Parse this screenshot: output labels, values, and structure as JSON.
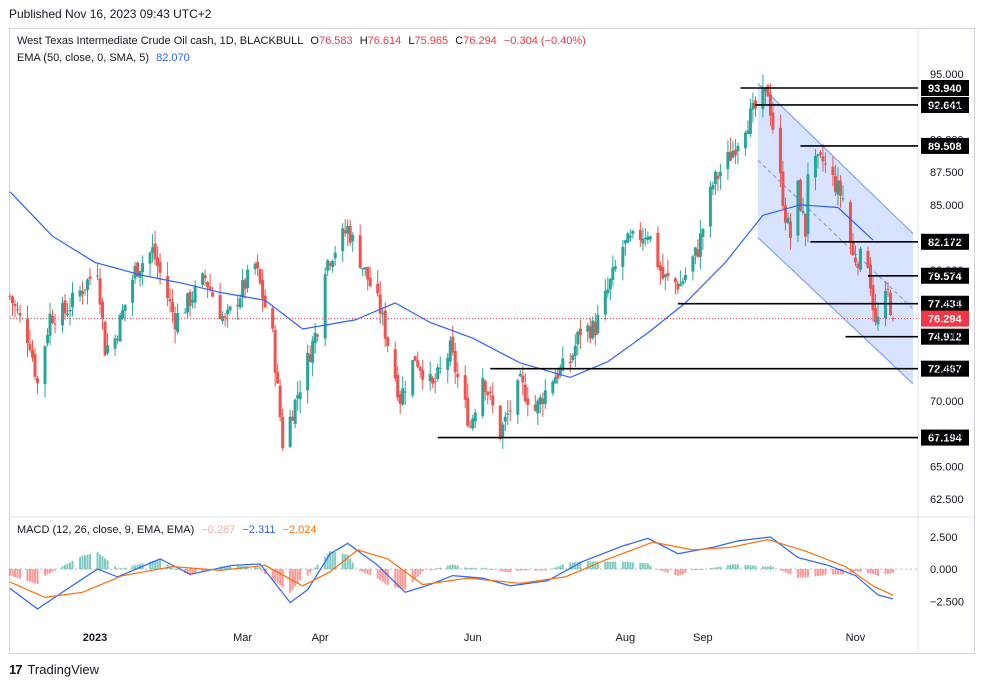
{
  "header": {
    "published": "Published  Nov 16, 2023 09:43 UTC+2"
  },
  "legend": {
    "title": "West Texas Intermediate Crude Oil cash, 1D, BLACKBULL",
    "o_label": "O",
    "o": "76.583",
    "h_label": "H",
    "h": "76.614",
    "l_label": "L",
    "l": "75.965",
    "c_label": "C",
    "c": "76.294",
    "change": "−0.304 (−0.40%)",
    "ema_label": "EMA (50, close, 0, SMA, 5)",
    "ema_value": "82.070"
  },
  "macd_legend": {
    "label": "MACD (12, 26, close, 9, EMA, EMA)",
    "hist": "−0.287",
    "macd": "−2.311",
    "signal": "−2.024"
  },
  "footer": {
    "brand": "TradingView",
    "logo": "17"
  },
  "colors": {
    "up": "#26a69a",
    "down": "#ef5350",
    "ema": "#2962ff",
    "macd": "#2962ff",
    "signal": "#ff6d00",
    "channel": "#2962ff",
    "price_tag": "#f23645"
  },
  "chart_data": [
    {
      "type": "candlestick",
      "title": "West Texas Intermediate Crude Oil cash, 1D, BLACKBULL",
      "x_ticks": [
        "2023",
        "Mar",
        "Apr",
        "Jun",
        "Aug",
        "Sep",
        "Nov"
      ],
      "y_ticks": [
        "95.000",
        "92.500",
        "90.000",
        "87.500",
        "85.000",
        "82.500",
        "80.000",
        "77.500",
        "75.000",
        "72.500",
        "70.000",
        "67.500",
        "65.000",
        "62.500"
      ],
      "ylim": [
        61.5,
        97
      ],
      "x_range": [
        "2022-11-28",
        "2023-11-26"
      ],
      "last_price": "76.294",
      "horizontal_levels": [
        {
          "label": "93.940",
          "value": 93.94,
          "from": "2023-09-16",
          "to": "2023-11-24"
        },
        {
          "label": "92.641",
          "value": 92.641,
          "from": "2023-09-22",
          "to": "2023-11-24"
        },
        {
          "label": "89.508",
          "value": 89.508,
          "from": "2023-10-10",
          "to": "2023-11-24"
        },
        {
          "label": "82.172",
          "value": 82.172,
          "from": "2023-10-14",
          "to": "2023-11-24"
        },
        {
          "label": "79.574",
          "value": 79.574,
          "from": "2023-11-06",
          "to": "2023-11-24"
        },
        {
          "label": "77.434",
          "value": 77.434,
          "from": "2023-08-22",
          "to": "2023-11-24"
        },
        {
          "label": "74.912",
          "value": 74.912,
          "from": "2023-10-28",
          "to": "2023-11-24"
        },
        {
          "label": "72.467",
          "value": 72.467,
          "from": "2023-06-08",
          "to": "2023-11-24"
        },
        {
          "label": "67.194",
          "value": 67.194,
          "from": "2023-05-18",
          "to": "2023-11-24"
        }
      ],
      "channel": {
        "upper": [
          [
            "2023-09-23",
            94.3
          ],
          [
            "2023-11-24",
            82.8
          ]
        ],
        "lower": [
          [
            "2023-09-23",
            82.5
          ],
          [
            "2023-11-24",
            71.3
          ]
        ],
        "start": "2023-09-23"
      },
      "ema50": [
        [
          "2022-11-28",
          86.0
        ],
        [
          "2022-12-15",
          82.6
        ],
        [
          "2023-01-01",
          80.6
        ],
        [
          "2023-01-20",
          79.6
        ],
        [
          "2023-02-05",
          79.0
        ],
        [
          "2023-02-20",
          78.3
        ],
        [
          "2023-03-10",
          77.7
        ],
        [
          "2023-03-25",
          75.5
        ],
        [
          "2023-04-15",
          76.2
        ],
        [
          "2023-05-01",
          77.5
        ],
        [
          "2023-05-15",
          76.0
        ],
        [
          "2023-06-01",
          74.8
        ],
        [
          "2023-06-20",
          72.9
        ],
        [
          "2023-07-10",
          71.8
        ],
        [
          "2023-07-25",
          73.0
        ],
        [
          "2023-08-10",
          75.2
        ],
        [
          "2023-08-25",
          77.5
        ],
        [
          "2023-09-10",
          80.6
        ],
        [
          "2023-09-25",
          84.2
        ],
        [
          "2023-10-10",
          85.0
        ],
        [
          "2023-10-25",
          84.8
        ],
        [
          "2023-11-08",
          82.3
        ]
      ],
      "anchors": [
        [
          "2022-11-28",
          78.0
        ],
        [
          "2022-12-06",
          74.5
        ],
        [
          "2022-12-09",
          71.3
        ],
        [
          "2022-12-14",
          76.5
        ],
        [
          "2022-12-20",
          76.8
        ],
        [
          "2023-01-02",
          80.2
        ],
        [
          "2023-01-05",
          74.0
        ],
        [
          "2023-01-09",
          74.8
        ],
        [
          "2023-01-17",
          80.0
        ],
        [
          "2023-01-24",
          81.5
        ],
        [
          "2023-02-02",
          76.2
        ],
        [
          "2023-02-07",
          77.5
        ],
        [
          "2023-02-14",
          79.4
        ],
        [
          "2023-02-22",
          76.0
        ],
        [
          "2023-03-06",
          80.4
        ],
        [
          "2023-03-13",
          74.9
        ],
        [
          "2023-03-17",
          66.8
        ],
        [
          "2023-03-22",
          69.9
        ],
        [
          "2023-03-31",
          75.7
        ],
        [
          "2023-04-03",
          80.4
        ],
        [
          "2023-04-12",
          83.2
        ],
        [
          "2023-04-25",
          77.0
        ],
        [
          "2023-05-03",
          70.2
        ],
        [
          "2023-05-05",
          71.3
        ],
        [
          "2023-05-09",
          73.4
        ],
        [
          "2023-05-16",
          71.0
        ],
        [
          "2023-05-23",
          73.9
        ],
        [
          "2023-05-31",
          68.1
        ],
        [
          "2023-06-05",
          72.0
        ],
        [
          "2023-06-12",
          67.5
        ],
        [
          "2023-06-20",
          71.3
        ],
        [
          "2023-06-26",
          69.3
        ],
        [
          "2023-07-03",
          71.8
        ],
        [
          "2023-07-10",
          73.0
        ],
        [
          "2023-07-14",
          75.4
        ],
        [
          "2023-07-20",
          75.6
        ],
        [
          "2023-07-31",
          81.8
        ],
        [
          "2023-08-10",
          83.0
        ],
        [
          "2023-08-16",
          79.4
        ],
        [
          "2023-08-23",
          78.9
        ],
        [
          "2023-08-30",
          81.6
        ],
        [
          "2023-09-05",
          86.6
        ],
        [
          "2023-09-12",
          88.8
        ],
        [
          "2023-09-18",
          91.2
        ],
        [
          "2023-09-27",
          93.7
        ],
        [
          "2023-10-04",
          84.2
        ],
        [
          "2023-10-06",
          82.6
        ],
        [
          "2023-10-09",
          86.2
        ],
        [
          "2023-10-12",
          82.9
        ],
        [
          "2023-10-13",
          87.7
        ],
        [
          "2023-10-19",
          88.3
        ],
        [
          "2023-10-27",
          85.5
        ],
        [
          "2023-10-31",
          81.0
        ],
        [
          "2023-11-06",
          80.8
        ],
        [
          "2023-11-09",
          75.7
        ],
        [
          "2023-11-14",
          78.2
        ],
        [
          "2023-11-16",
          76.294
        ]
      ]
    },
    {
      "type": "line",
      "title": "MACD (12, 26, close, 9, EMA, EMA)",
      "y_ticks": [
        "2.500",
        "0.000",
        "−2.500"
      ],
      "ylim": [
        -5.2,
        3.2
      ],
      "series": [
        {
          "name": "MACD",
          "values": [
            [
              "2022-11-28",
              -1.5
            ],
            [
              "2022-12-09",
              -3.1
            ],
            [
              "2022-12-22",
              -1.4
            ],
            [
              "2023-01-02",
              0.0
            ],
            [
              "2023-01-10",
              -0.6
            ],
            [
              "2023-01-27",
              0.8
            ],
            [
              "2023-02-08",
              -0.4
            ],
            [
              "2023-02-25",
              0.3
            ],
            [
              "2023-03-08",
              0.4
            ],
            [
              "2023-03-20",
              -2.6
            ],
            [
              "2023-03-27",
              -1.6
            ],
            [
              "2023-04-05",
              1.2
            ],
            [
              "2023-04-12",
              2.0
            ],
            [
              "2023-04-24",
              0.3
            ],
            [
              "2023-05-05",
              -1.8
            ],
            [
              "2023-05-15",
              -1.2
            ],
            [
              "2023-05-24",
              -0.5
            ],
            [
              "2023-06-05",
              -0.7
            ],
            [
              "2023-06-16",
              -1.3
            ],
            [
              "2023-07-01",
              -0.9
            ],
            [
              "2023-07-15",
              0.6
            ],
            [
              "2023-07-31",
              1.8
            ],
            [
              "2023-08-10",
              2.4
            ],
            [
              "2023-08-22",
              1.2
            ],
            [
              "2023-09-05",
              1.7
            ],
            [
              "2023-09-15",
              2.2
            ],
            [
              "2023-09-28",
              2.5
            ],
            [
              "2023-10-09",
              0.9
            ],
            [
              "2023-10-21",
              0.3
            ],
            [
              "2023-11-01",
              -0.5
            ],
            [
              "2023-11-10",
              -2.0
            ],
            [
              "2023-11-16",
              -2.311
            ]
          ]
        },
        {
          "name": "Signal",
          "values": [
            [
              "2022-11-28",
              -1.0
            ],
            [
              "2022-12-12",
              -2.2
            ],
            [
              "2022-12-27",
              -1.8
            ],
            [
              "2023-01-12",
              -0.5
            ],
            [
              "2023-02-01",
              0.2
            ],
            [
              "2023-02-20",
              -0.1
            ],
            [
              "2023-03-10",
              0.3
            ],
            [
              "2023-03-25",
              -1.3
            ],
            [
              "2023-04-05",
              -0.2
            ],
            [
              "2023-04-16",
              1.5
            ],
            [
              "2023-04-28",
              0.8
            ],
            [
              "2023-05-12",
              -1.2
            ],
            [
              "2023-05-30",
              -0.7
            ],
            [
              "2023-06-20",
              -1.1
            ],
            [
              "2023-07-08",
              -0.6
            ],
            [
              "2023-07-24",
              0.7
            ],
            [
              "2023-08-12",
              2.1
            ],
            [
              "2023-08-28",
              1.5
            ],
            [
              "2023-09-12",
              1.7
            ],
            [
              "2023-09-27",
              2.3
            ],
            [
              "2023-10-12",
              1.4
            ],
            [
              "2023-10-28",
              0.2
            ],
            [
              "2023-11-08",
              -1.3
            ],
            [
              "2023-11-16",
              -2.024
            ]
          ]
        }
      ]
    }
  ]
}
